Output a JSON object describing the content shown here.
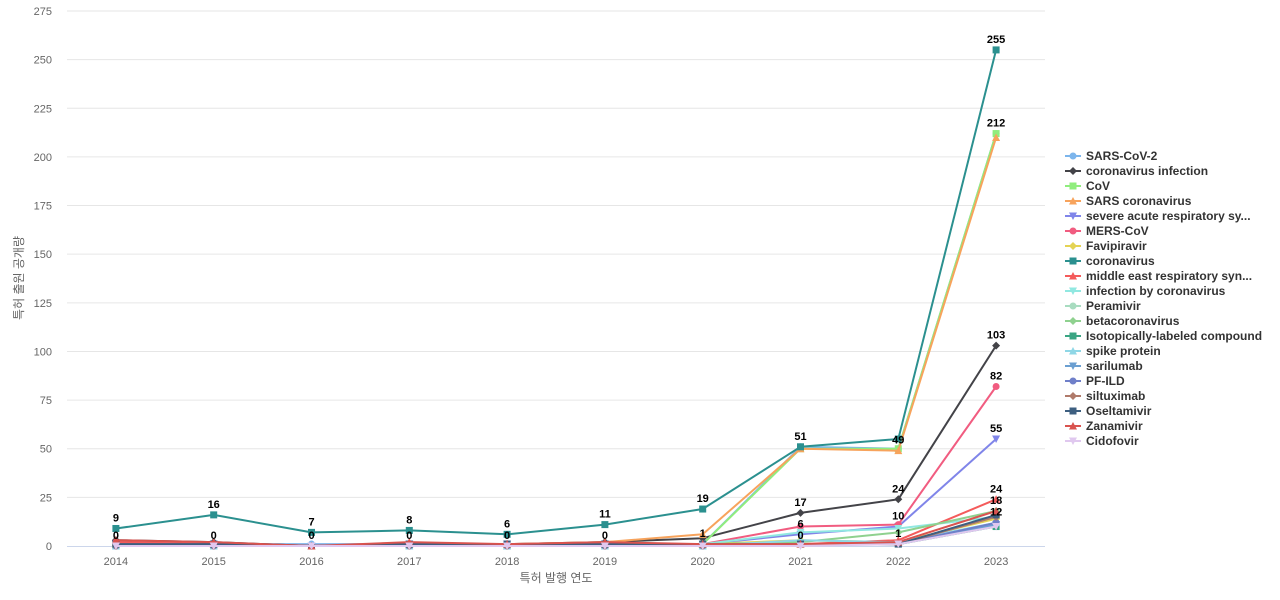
{
  "chart_data": {
    "type": "line",
    "xlabel": "특허 발행 연도",
    "ylabel": "특허 출원 공개량",
    "ylim": [
      0,
      275
    ],
    "yticks": [
      0,
      25,
      50,
      75,
      100,
      125,
      150,
      175,
      200,
      225,
      250,
      275
    ],
    "categories": [
      "2014",
      "2015",
      "2016",
      "2017",
      "2018",
      "2019",
      "2020",
      "2021",
      "2022",
      "2023"
    ],
    "grid": true,
    "legend_position": "right",
    "series": [
      {
        "name": "SARS-CoV-2",
        "color": "#7cb5ec",
        "marker": "circle",
        "values": [
          1,
          1,
          1,
          1,
          1,
          1,
          1,
          51,
          50,
          212
        ]
      },
      {
        "name": "coronavirus infection",
        "color": "#434348",
        "marker": "diamond",
        "values": [
          3,
          2,
          0,
          1,
          1,
          2,
          4,
          17,
          24,
          103
        ]
      },
      {
        "name": "CoV",
        "color": "#90ed7d",
        "marker": "square",
        "values": [
          1,
          1,
          0,
          1,
          1,
          1,
          1,
          50,
          50,
          212
        ]
      },
      {
        "name": "SARS coronavirus",
        "color": "#f7a35c",
        "marker": "triangle",
        "values": [
          1,
          1,
          0,
          1,
          1,
          2,
          6,
          50,
          49,
          210
        ]
      },
      {
        "name": "severe acute respiratory sy...",
        "color": "#8085e9",
        "marker": "triangle-down",
        "values": [
          1,
          1,
          0,
          1,
          1,
          1,
          1,
          6,
          10,
          55
        ]
      },
      {
        "name": "MERS-CoV",
        "color": "#f15c80",
        "marker": "circle",
        "values": [
          2,
          1,
          0,
          1,
          0,
          1,
          1,
          10,
          11,
          82
        ]
      },
      {
        "name": "Favipiravir",
        "color": "#e4d354",
        "marker": "diamond",
        "values": [
          0,
          0,
          0,
          0,
          0,
          0,
          1,
          3,
          2,
          14
        ]
      },
      {
        "name": "coronavirus",
        "color": "#2b908f",
        "marker": "square",
        "values": [
          9,
          16,
          7,
          8,
          6,
          11,
          19,
          51,
          55,
          255
        ]
      },
      {
        "name": "middle east respiratory syn...",
        "color": "#f45b5b",
        "marker": "triangle",
        "values": [
          2,
          1,
          0,
          1,
          0,
          1,
          1,
          1,
          3,
          24
        ]
      },
      {
        "name": "infection by coronavirus",
        "color": "#91e8e1",
        "marker": "triangle-down",
        "values": [
          0,
          0,
          0,
          0,
          0,
          0,
          1,
          7,
          9,
          15
        ]
      },
      {
        "name": "Peramivir",
        "color": "#a8dcc0",
        "marker": "circle",
        "values": [
          0,
          0,
          0,
          0,
          0,
          0,
          0,
          1,
          1,
          12
        ]
      },
      {
        "name": "betacoronavirus",
        "color": "#8fd18f",
        "marker": "diamond",
        "values": [
          0,
          0,
          0,
          0,
          0,
          0,
          1,
          2,
          7,
          18
        ]
      },
      {
        "name": "Isotopically-labeled compound",
        "color": "#3aa583",
        "marker": "square",
        "values": [
          0,
          0,
          0,
          0,
          0,
          0,
          0,
          1,
          1,
          10
        ]
      },
      {
        "name": "spike protein",
        "color": "#8fd7e6",
        "marker": "triangle",
        "values": [
          0,
          0,
          0,
          0,
          0,
          0,
          0,
          3,
          2,
          12
        ]
      },
      {
        "name": "sarilumab",
        "color": "#6b9fd1",
        "marker": "triangle-down",
        "values": [
          0,
          0,
          0,
          0,
          0,
          0,
          0,
          1,
          1,
          11
        ]
      },
      {
        "name": "PF-ILD",
        "color": "#6f7fc9",
        "marker": "circle",
        "values": [
          0,
          0,
          0,
          0,
          0,
          0,
          0,
          1,
          1,
          12
        ]
      },
      {
        "name": "siltuximab",
        "color": "#b07a6a",
        "marker": "diamond",
        "values": [
          0,
          0,
          0,
          0,
          0,
          0,
          0,
          1,
          1,
          15
        ]
      },
      {
        "name": "Oseltamivir",
        "color": "#3d5f80",
        "marker": "square",
        "values": [
          1,
          1,
          0,
          1,
          1,
          1,
          1,
          1,
          1,
          16
        ]
      },
      {
        "name": "Zanamivir",
        "color": "#d9534f",
        "marker": "triangle",
        "values": [
          3,
          2,
          0,
          2,
          1,
          2,
          1,
          1,
          2,
          18
        ]
      },
      {
        "name": "Cidofovir",
        "color": "#e0c8ef",
        "marker": "triangle-down",
        "values": [
          0,
          0,
          0,
          0,
          0,
          0,
          0,
          0,
          1,
          10
        ]
      }
    ],
    "data_labels": [
      {
        "x": "2014",
        "text": "9",
        "value": 9
      },
      {
        "x": "2014",
        "text": "0",
        "value": 0
      },
      {
        "x": "2015",
        "text": "16",
        "value": 16
      },
      {
        "x": "2015",
        "text": "0",
        "value": 0
      },
      {
        "x": "2016",
        "text": "7",
        "value": 7
      },
      {
        "x": "2016",
        "text": "0",
        "value": 0
      },
      {
        "x": "2017",
        "text": "8",
        "value": 8
      },
      {
        "x": "2017",
        "text": "0",
        "value": 0
      },
      {
        "x": "2018",
        "text": "6",
        "value": 6
      },
      {
        "x": "2018",
        "text": "0",
        "value": 0
      },
      {
        "x": "2019",
        "text": "11",
        "value": 11
      },
      {
        "x": "2019",
        "text": "0",
        "value": 0
      },
      {
        "x": "2020",
        "text": "19",
        "value": 19
      },
      {
        "x": "2020",
        "text": "1",
        "value": 1
      },
      {
        "x": "2021",
        "text": "51",
        "value": 51
      },
      {
        "x": "2021",
        "text": "17",
        "value": 17
      },
      {
        "x": "2021",
        "text": "6",
        "value": 6
      },
      {
        "x": "2021",
        "text": "0",
        "value": 0
      },
      {
        "x": "2022",
        "text": "49",
        "value": 49
      },
      {
        "x": "2022",
        "text": "24",
        "value": 24
      },
      {
        "x": "2022",
        "text": "10",
        "value": 10
      },
      {
        "x": "2022",
        "text": "1",
        "value": 1
      },
      {
        "x": "2023",
        "text": "255",
        "value": 255
      },
      {
        "x": "2023",
        "text": "212",
        "value": 212
      },
      {
        "x": "2023",
        "text": "103",
        "value": 103
      },
      {
        "x": "2023",
        "text": "82",
        "value": 82
      },
      {
        "x": "2023",
        "text": "55",
        "value": 55
      },
      {
        "x": "2023",
        "text": "24",
        "value": 24
      },
      {
        "x": "2023",
        "text": "18",
        "value": 18
      },
      {
        "x": "2023",
        "text": "12",
        "value": 12
      }
    ]
  }
}
